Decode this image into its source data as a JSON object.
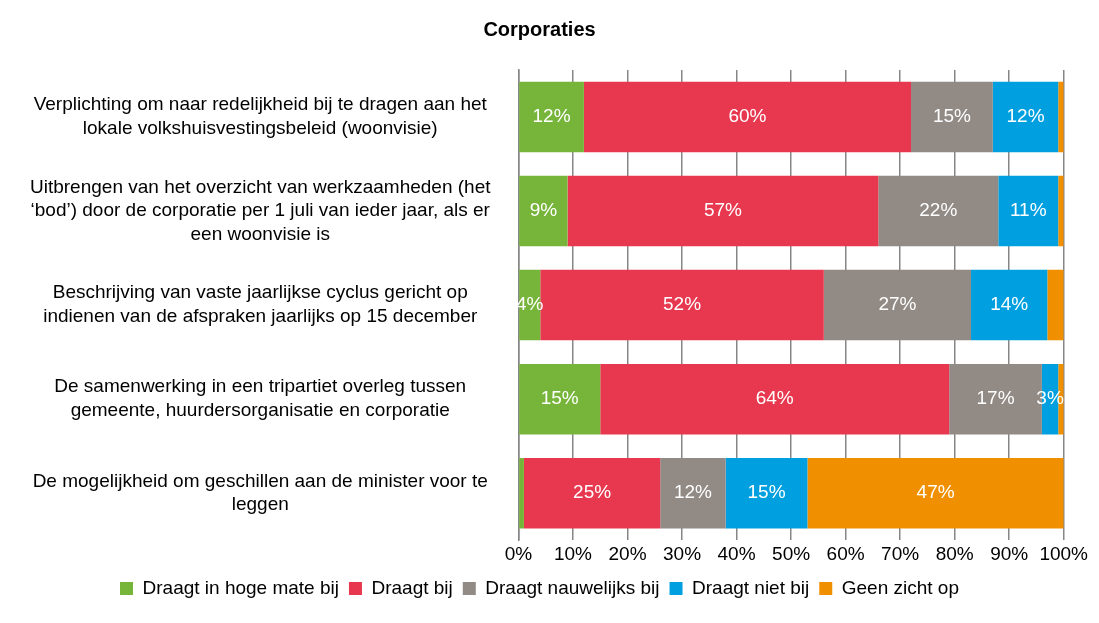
{
  "chart_data": {
    "type": "bar",
    "orientation": "horizontal",
    "stacked": true,
    "title": "Corporaties",
    "categories": [
      "Verplichting om naar redelijkheid bij te dragen aan het lokale volkshuisvestingsbeleid (woonvisie)",
      "Uitbrengen van het overzicht van werkzaamheden (het ‘bod’) door de corporatie per 1 juli van ieder jaar, als er een woonvisie is",
      "Beschrijving van vaste jaarlijkse cyclus gericht op indienen van de afspraken jaarlijks op 15 december",
      "De samenwerking in een tripartiet overleg tussen gemeente, huurdersorganisatie en corporatie",
      "De mogelijkheid om geschillen aan de minister voor te leggen"
    ],
    "series": [
      {
        "name": "Draagt in hoge mate bij",
        "color": "#77b53a",
        "values": [
          12,
          9,
          4,
          15,
          1
        ],
        "value_labels": [
          "12%",
          "9%",
          "4%",
          "15%",
          null
        ]
      },
      {
        "name": "Draagt bij",
        "color": "#e8384f",
        "values": [
          60,
          57,
          52,
          64,
          25
        ],
        "value_labels": [
          "60%",
          "57%",
          "52%",
          "64%",
          "25%"
        ]
      },
      {
        "name": "Draagt nauwelijks bij",
        "color": "#918a85",
        "values": [
          15,
          22,
          27,
          17,
          12
        ],
        "value_labels": [
          "15%",
          "22%",
          "27%",
          "17%",
          "12%"
        ]
      },
      {
        "name": "Draagt niet bij",
        "color": "#00a0e0",
        "values": [
          12,
          11,
          14,
          3,
          15
        ],
        "value_labels": [
          "12%",
          "11%",
          "14%",
          "3%",
          "15%"
        ]
      },
      {
        "name": "Geen zicht op",
        "color": "#f09000",
        "values": [
          1,
          1,
          3,
          1,
          47
        ],
        "value_labels": [
          null,
          null,
          null,
          null,
          "47%"
        ]
      }
    ],
    "xlim": [
      0,
      100
    ],
    "xticks": [
      {
        "value": 0,
        "label": "0%"
      },
      {
        "value": 10,
        "label": "10%"
      },
      {
        "value": 20,
        "label": "20%"
      },
      {
        "value": 30,
        "label": "30%"
      },
      {
        "value": 40,
        "label": "40%"
      },
      {
        "value": 50,
        "label": "50%"
      },
      {
        "value": 60,
        "label": "60%"
      },
      {
        "value": 70,
        "label": "70%"
      },
      {
        "value": 80,
        "label": "80%"
      },
      {
        "value": 90,
        "label": "90%"
      },
      {
        "value": 100,
        "label": "100%"
      }
    ],
    "grid": "x",
    "legend": "bottom"
  }
}
